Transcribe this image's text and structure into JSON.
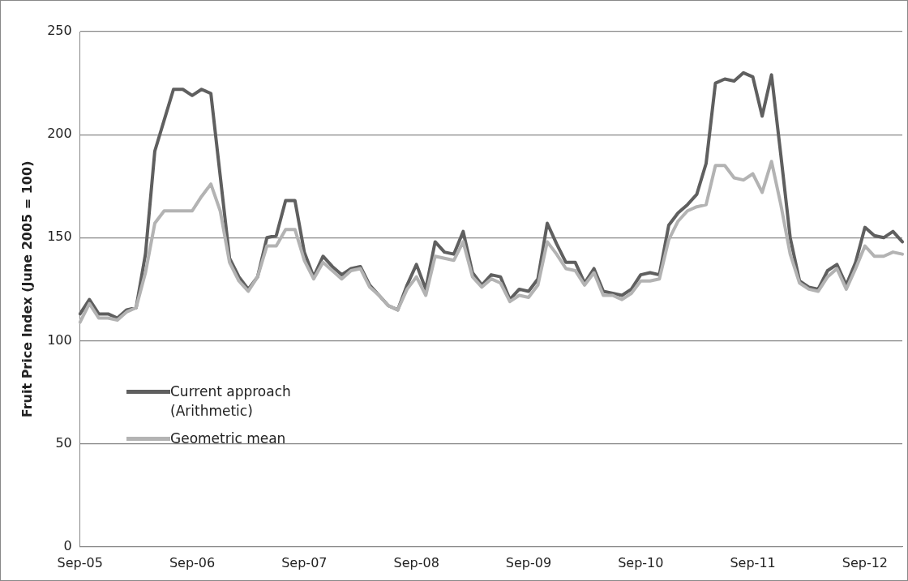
{
  "chart_data": {
    "type": "line",
    "ylabel": "Fruit Price Index (June 2005 = 100)",
    "categories": [
      "Sep-05",
      null,
      null,
      null,
      null,
      null,
      null,
      null,
      null,
      null,
      null,
      null,
      "Sep-06",
      null,
      null,
      null,
      null,
      null,
      null,
      null,
      null,
      null,
      null,
      null,
      "Sep-07",
      null,
      null,
      null,
      null,
      null,
      null,
      null,
      null,
      null,
      null,
      null,
      "Sep-08",
      null,
      null,
      null,
      null,
      null,
      null,
      null,
      null,
      null,
      null,
      null,
      "Sep-09",
      null,
      null,
      null,
      null,
      null,
      null,
      null,
      null,
      null,
      null,
      null,
      "Sep-10",
      null,
      null,
      null,
      null,
      null,
      null,
      null,
      null,
      null,
      null,
      null,
      "Sep-11",
      null,
      null,
      null,
      null,
      null,
      null,
      null,
      null,
      null,
      null,
      null,
      "Sep-12",
      null,
      null,
      null,
      null
    ],
    "series": [
      {
        "name": "Current approach (Arithmetic)",
        "color": "#5f5f5f",
        "values": [
          113,
          120,
          113,
          113,
          111,
          115,
          116,
          142,
          192,
          207,
          222,
          222,
          219,
          222,
          220,
          180,
          140,
          131,
          125,
          131,
          150,
          151,
          168,
          168,
          143,
          131,
          141,
          136,
          132,
          135,
          136,
          127,
          122,
          117,
          115,
          127,
          137,
          125,
          148,
          143,
          142,
          153,
          133,
          127,
          132,
          131,
          120,
          125,
          124,
          130,
          157,
          147,
          138,
          138,
          128,
          135,
          124,
          123,
          122,
          125,
          132,
          133,
          132,
          156,
          162,
          166,
          171,
          186,
          225,
          227,
          226,
          230,
          228,
          209,
          229,
          190,
          150,
          129,
          126,
          125,
          134,
          137,
          127,
          138,
          155,
          151,
          150,
          153,
          148
        ]
      },
      {
        "name": "Geometric mean",
        "color": "#b3b3b3",
        "values": [
          109,
          118,
          111,
          111,
          110,
          114,
          116,
          133,
          157,
          163,
          163,
          163,
          163,
          170,
          176,
          163,
          138,
          129,
          124,
          131,
          146,
          146,
          154,
          154,
          139,
          130,
          138,
          134,
          130,
          134,
          135,
          126,
          122,
          117,
          115,
          125,
          131,
          122,
          141,
          140,
          139,
          148,
          131,
          126,
          130,
          128,
          119,
          122,
          121,
          127,
          148,
          142,
          135,
          134,
          127,
          133,
          122,
          122,
          120,
          123,
          129,
          129,
          130,
          149,
          158,
          163,
          165,
          166,
          185,
          185,
          179,
          178,
          181,
          172,
          187,
          166,
          142,
          128,
          125,
          124,
          131,
          135,
          125,
          135,
          146,
          141,
          141,
          143,
          142
        ]
      }
    ],
    "ylim": [
      0,
      250
    ],
    "yticks": [
      0,
      50,
      100,
      150,
      200,
      250
    ],
    "grid": "y",
    "legend": "bottom left",
    "marker": "none",
    "line_style": "solid"
  }
}
